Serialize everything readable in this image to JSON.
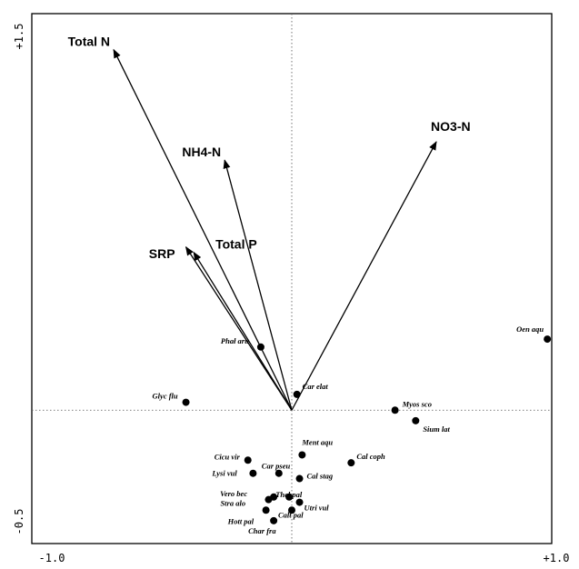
{
  "chart_data": {
    "type": "scatter",
    "subtype": "ordination-biplot",
    "title": "",
    "xlabel": "",
    "ylabel": "",
    "xlim": [
      -1.0,
      1.0
    ],
    "ylim": [
      -0.5,
      1.5
    ],
    "x_tick_labels": [
      "-1.0",
      "+1.0"
    ],
    "y_tick_labels": [
      "-0.5",
      "+1.5"
    ],
    "grid": false,
    "zero_lines": "dotted",
    "vectors": [
      {
        "name": "Total N",
        "x": -0.69,
        "y": 1.37
      },
      {
        "name": "NH4-N",
        "x": -0.26,
        "y": 0.95
      },
      {
        "name": "NO3-N",
        "x": 0.56,
        "y": 1.02
      },
      {
        "name": "Total P",
        "x": -0.38,
        "y": 0.6
      },
      {
        "name": "SRP",
        "x": -0.41,
        "y": 0.62
      }
    ],
    "points": [
      {
        "name": "Oen aqu",
        "x": 0.99,
        "y": 0.27
      },
      {
        "name": "Phał aru",
        "x": -0.12,
        "y": 0.24
      },
      {
        "name": "Car elat",
        "x": 0.02,
        "y": 0.06
      },
      {
        "name": "Glyc flu",
        "x": -0.41,
        "y": 0.03
      },
      {
        "name": "Myos sco",
        "x": 0.4,
        "y": 0.0
      },
      {
        "name": "Sium lat",
        "x": 0.48,
        "y": -0.04
      },
      {
        "name": "Ment aqu",
        "x": 0.04,
        "y": -0.17
      },
      {
        "name": "Cal coph",
        "x": 0.23,
        "y": -0.2
      },
      {
        "name": "Cicu vir",
        "x": -0.17,
        "y": -0.19
      },
      {
        "name": "Car pseu",
        "x": -0.05,
        "y": -0.24
      },
      {
        "name": "Lysi vul",
        "x": -0.15,
        "y": -0.24
      },
      {
        "name": "Cal stag",
        "x": 0.03,
        "y": -0.26
      },
      {
        "name": "Thel pal",
        "x": -0.01,
        "y": -0.33
      },
      {
        "name": "Vero bec",
        "x": -0.07,
        "y": -0.33
      },
      {
        "name": "Stra alo",
        "x": -0.09,
        "y": -0.34
      },
      {
        "name": "Utri vul",
        "x": 0.03,
        "y": -0.35
      },
      {
        "name": "Calt pal",
        "x": 0.0,
        "y": -0.38
      },
      {
        "name": "Hott pal",
        "x": -0.1,
        "y": -0.38
      },
      {
        "name": "Char fra",
        "x": -0.07,
        "y": -0.42
      }
    ]
  }
}
